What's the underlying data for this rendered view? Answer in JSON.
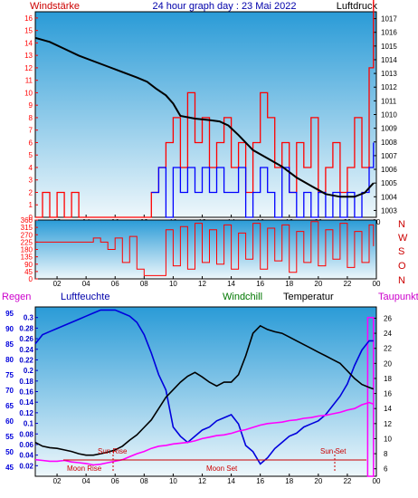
{
  "header": {
    "title": "24 hour graph day : 23 Mai 2022",
    "left_label": "Windstärke",
    "right_label": "Luftdruck"
  },
  "colors": {
    "panel_top": "#2a9bd7",
    "panel_bottom": "#eef7fb",
    "frame": "#000000",
    "wind": "#ff0000",
    "gust": "#0000ff",
    "pressure": "#000000",
    "humidity": "#0000dd",
    "temperature": "#000000",
    "dewpoint": "#ff00ff",
    "rain_axis": "#0000cc",
    "dewpoint_axis": "#000000",
    "annotation": "#cc0000",
    "compass": "#cc0000"
  },
  "legend_bottom": {
    "regen": "Regen",
    "luftfeuchte": "Luftfeuchte",
    "windchill": "Windchill",
    "temperatur": "Temperatur",
    "taupunkt": "Taupunkt"
  },
  "compass": [
    "N",
    "W",
    "S",
    "O",
    "N"
  ],
  "annotations": {
    "sun_rise": "Sun Rise",
    "moon_rise": "Moon Rise",
    "moon_set": "Moon Set",
    "sun_set": "Sun Set"
  },
  "chart_data": [
    {
      "id": "wind_pressure",
      "type": "line",
      "x_ticks": [
        "02",
        "04",
        "06",
        "08",
        "10",
        "12",
        "14",
        "16",
        "18",
        "20",
        "22",
        "00"
      ],
      "xlim_hours": [
        0.5,
        24
      ],
      "y_left": {
        "label": "Windstärke",
        "range": [
          0,
          16.5
        ],
        "ticks": [
          0,
          1,
          2,
          3,
          4,
          5,
          6,
          7,
          8,
          9,
          10,
          11,
          12,
          13,
          14,
          15,
          16
        ]
      },
      "y_right": {
        "label": "Luftdruck",
        "range": [
          1002.5,
          1017.5
        ],
        "ticks": [
          1003,
          1004,
          1005,
          1006,
          1007,
          1008,
          1009,
          1010,
          1011,
          1012,
          1013,
          1014,
          1015,
          1016,
          1017
        ]
      },
      "series": [
        {
          "name": "Luftdruck",
          "axis": "right",
          "x": [
            0.5,
            1.5,
            2.5,
            3.5,
            4.5,
            5.5,
            6.5,
            7.5,
            8.2,
            8.8,
            9.5,
            10.0,
            10.5,
            11.5,
            12.5,
            13.2,
            13.8,
            14.5,
            15.5,
            16.5,
            17.5,
            18.5,
            19.5,
            20.5,
            21.5,
            22.5,
            23.2,
            23.8
          ],
          "values": [
            1015.6,
            1015.3,
            1014.8,
            1014.3,
            1013.9,
            1013.5,
            1013.1,
            1012.7,
            1012.4,
            1011.9,
            1011.4,
            1010.8,
            1009.9,
            1009.7,
            1009.6,
            1009.5,
            1009.2,
            1008.5,
            1007.4,
            1006.8,
            1006.2,
            1005.4,
            1004.8,
            1004.2,
            1004.0,
            1004.0,
            1004.3,
            1005.0
          ]
        },
        {
          "name": "Windstärke",
          "axis": "left",
          "x": [
            0.5,
            1.0,
            1.5,
            2.0,
            2.5,
            3.0,
            3.5,
            4.0,
            5.0,
            6.0,
            7.0,
            8.0,
            8.5,
            9.0,
            9.5,
            10.0,
            10.5,
            11.0,
            11.5,
            12.0,
            12.5,
            13.0,
            13.5,
            14.0,
            14.5,
            15.0,
            15.5,
            16.0,
            16.5,
            17.0,
            17.5,
            18.0,
            18.5,
            19.0,
            19.5,
            20.0,
            20.5,
            21.0,
            21.5,
            22.0,
            22.5,
            23.0,
            23.5,
            23.8
          ],
          "values": [
            0,
            2,
            0,
            2,
            0,
            2,
            0,
            0,
            0,
            0,
            0,
            0,
            2,
            4,
            6,
            8,
            4,
            10,
            6,
            8,
            4,
            6,
            8,
            4,
            6,
            2,
            6,
            10,
            8,
            4,
            6,
            2,
            6,
            4,
            8,
            2,
            4,
            6,
            2,
            4,
            8,
            4,
            12,
            18
          ]
        },
        {
          "name": "Böen",
          "axis": "left",
          "x": [
            8.5,
            9.0,
            9.5,
            10.0,
            10.5,
            11.0,
            11.5,
            12.0,
            12.5,
            13.0,
            13.5,
            14.0,
            14.5,
            15.0,
            15.5,
            16.0,
            16.5,
            17.0,
            17.5,
            18.0,
            18.5,
            19.0,
            19.5,
            20.0,
            20.5,
            21.0,
            21.5,
            22.0,
            22.5,
            23.0,
            23.5,
            23.8
          ],
          "values": [
            2,
            4,
            0,
            4,
            2,
            4,
            2,
            4,
            2,
            4,
            2,
            2,
            4,
            0,
            2,
            4,
            2,
            0,
            4,
            2,
            0,
            2,
            0,
            2,
            0,
            2,
            0,
            2,
            0,
            2,
            4,
            6
          ]
        }
      ]
    },
    {
      "id": "wind_direction",
      "type": "line",
      "x_ticks": [
        "02",
        "04",
        "06",
        "08",
        "10",
        "12",
        "14",
        "16",
        "18",
        "20",
        "22",
        "00"
      ],
      "y_left": {
        "range": [
          0,
          360
        ],
        "ticks": [
          0,
          45,
          90,
          135,
          180,
          225,
          270,
          315,
          360
        ]
      },
      "series": [
        {
          "name": "Windrichtung",
          "x": [
            0.5,
            1.5,
            2.5,
            3.5,
            4.5,
            5.0,
            5.5,
            6.0,
            6.5,
            7.0,
            7.5,
            8.0,
            8.5,
            9.0,
            9.5,
            10.0,
            10.5,
            11.0,
            11.5,
            12.0,
            12.5,
            13.0,
            13.5,
            14.0,
            14.5,
            15.0,
            15.5,
            16.0,
            16.5,
            17.0,
            17.5,
            18.0,
            18.5,
            19.0,
            19.5,
            20.0,
            20.5,
            21.0,
            21.5,
            22.0,
            22.5,
            23.0,
            23.5,
            23.8
          ],
          "values": [
            225,
            225,
            225,
            225,
            250,
            225,
            180,
            250,
            100,
            260,
            60,
            20,
            20,
            20,
            300,
            80,
            320,
            60,
            340,
            100,
            300,
            90,
            330,
            60,
            280,
            120,
            340,
            60,
            310,
            110,
            330,
            40,
            290,
            100,
            350,
            80,
            300,
            120,
            340,
            70,
            290,
            100,
            330,
            200
          ]
        }
      ]
    },
    {
      "id": "humidity_temperature",
      "type": "line",
      "x_ticks": [
        "02",
        "04",
        "06",
        "08",
        "10",
        "12",
        "14",
        "16",
        "18",
        "20",
        "22",
        "00"
      ],
      "y_left_humidity": {
        "label": "Luftfeuchte",
        "range": [
          42,
          97
        ],
        "ticks": [
          45,
          50,
          55,
          60,
          65,
          70,
          75,
          80,
          85,
          90,
          95
        ]
      },
      "y_left_rain": {
        "label": "Regen",
        "range": [
          0,
          0.32
        ],
        "ticks": [
          0.02,
          0.04,
          0.06,
          0.08,
          0.1,
          0.12,
          0.14,
          0.16,
          0.18,
          0.2,
          0.22,
          0.24,
          0.26,
          0.28,
          0.3
        ]
      },
      "y_right": {
        "label": "Taupunkt",
        "range": [
          5,
          27.5
        ],
        "ticks": [
          6,
          8,
          10,
          12,
          14,
          16,
          18,
          20,
          22,
          24,
          26
        ]
      },
      "series": [
        {
          "name": "Luftfeuchte",
          "axis": "humidity",
          "x": [
            0.5,
            1.0,
            1.5,
            2.0,
            2.5,
            3.0,
            3.5,
            4.0,
            4.5,
            5.0,
            5.5,
            6.0,
            6.5,
            7.0,
            7.5,
            8.0,
            8.5,
            9.0,
            9.5,
            10.0,
            10.5,
            11.0,
            11.5,
            12.0,
            12.5,
            13.0,
            13.5,
            14.0,
            14.5,
            15.0,
            15.5,
            16.0,
            16.5,
            17.0,
            17.5,
            18.0,
            18.5,
            19.0,
            19.5,
            20.0,
            20.5,
            21.0,
            21.5,
            22.0,
            22.5,
            23.0,
            23.5,
            23.8
          ],
          "values": [
            85,
            88,
            89,
            90,
            91,
            92,
            93,
            94,
            95,
            96,
            96,
            96,
            95,
            94,
            92,
            88,
            82,
            75,
            70,
            58,
            55,
            53,
            55,
            57,
            58,
            60,
            61,
            62,
            59,
            52,
            50,
            46,
            48,
            51,
            53,
            55,
            56,
            58,
            59,
            60,
            62,
            65,
            68,
            72,
            78,
            83,
            86,
            86
          ]
        },
        {
          "name": "Temperatur",
          "axis": "right",
          "x": [
            0.5,
            1.0,
            1.5,
            2.0,
            2.5,
            3.0,
            3.5,
            4.0,
            4.5,
            5.0,
            5.5,
            6.0,
            6.5,
            7.0,
            7.5,
            8.0,
            8.5,
            9.0,
            9.5,
            10.0,
            10.5,
            11.0,
            11.5,
            12.0,
            12.5,
            13.0,
            13.5,
            14.0,
            14.5,
            15.0,
            15.5,
            16.0,
            16.5,
            17.0,
            17.5,
            18.0,
            18.5,
            19.0,
            19.5,
            20.0,
            20.5,
            21.0,
            21.5,
            22.0,
            22.5,
            23.0,
            23.5,
            23.8
          ],
          "values": [
            9.5,
            9.0,
            8.8,
            8.7,
            8.5,
            8.3,
            8.0,
            7.8,
            7.8,
            8.0,
            8.2,
            8.5,
            9.0,
            9.8,
            10.5,
            11.5,
            12.5,
            14.0,
            15.5,
            16.5,
            17.5,
            18.3,
            18.8,
            18.2,
            17.5,
            17.0,
            17.5,
            17.5,
            18.5,
            21.0,
            24.0,
            25.0,
            24.5,
            24.2,
            24.0,
            23.5,
            23.0,
            22.5,
            22.0,
            21.5,
            21.0,
            20.5,
            20.0,
            19.0,
            18.0,
            17.2,
            16.8,
            16.6
          ]
        },
        {
          "name": "Taupunkt",
          "axis": "right",
          "x": [
            0.5,
            1.0,
            1.5,
            2.0,
            2.5,
            3.0,
            3.5,
            4.0,
            4.5,
            5.0,
            5.5,
            6.0,
            6.5,
            7.0,
            7.5,
            8.0,
            8.5,
            9.0,
            9.5,
            10.0,
            10.5,
            11.0,
            11.5,
            12.0,
            12.5,
            13.0,
            13.5,
            14.0,
            14.5,
            15.0,
            15.5,
            16.0,
            16.5,
            17.0,
            17.5,
            18.0,
            18.5,
            19.0,
            19.5,
            20.0,
            20.5,
            21.0,
            21.5,
            22.0,
            22.5,
            23.0,
            23.5,
            23.8
          ],
          "values": [
            7.2,
            7.1,
            7.0,
            7.0,
            7.1,
            6.9,
            6.8,
            6.7,
            6.5,
            6.6,
            6.8,
            7.0,
            7.2,
            7.6,
            8.0,
            8.3,
            8.7,
            9.0,
            9.1,
            9.3,
            9.4,
            9.5,
            9.7,
            10.0,
            10.2,
            10.4,
            10.5,
            10.7,
            11.0,
            11.2,
            11.5,
            11.8,
            12.0,
            12.1,
            12.2,
            12.4,
            12.5,
            12.7,
            12.8,
            13.0,
            13.1,
            13.3,
            13.5,
            13.8,
            14.0,
            14.5,
            14.8,
            14.6
          ]
        }
      ],
      "rain_bar_hours": [
        23.4,
        23.8
      ],
      "rain_bar_value": 0.3
    }
  ]
}
